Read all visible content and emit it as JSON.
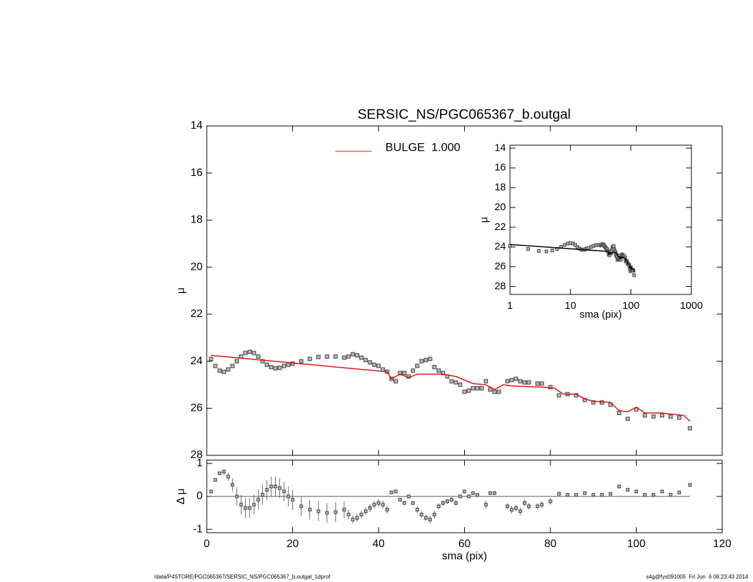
{
  "chart_data": [
    {
      "type": "scatter",
      "title": "SERSIC_NS/PGC065367_b.outgal",
      "ylabel": "μ",
      "xlim": [
        0,
        120
      ],
      "xticks": [
        0,
        20,
        40,
        60,
        80,
        100,
        120
      ],
      "ylim": [
        28,
        14
      ],
      "yticks": [
        14,
        16,
        18,
        20,
        22,
        24,
        26,
        28
      ],
      "legend": "top",
      "series": [
        {
          "color": "#555555",
          "x": [
            1,
            2,
            3,
            4,
            5,
            6,
            7,
            8,
            9,
            10,
            11,
            12,
            13,
            14,
            15,
            16,
            17,
            18,
            19,
            20,
            22,
            24,
            26,
            28,
            30,
            32,
            33,
            34,
            35,
            36,
            37,
            38,
            39,
            40,
            41,
            42,
            43,
            44,
            45,
            46,
            47,
            48,
            49,
            50,
            51,
            52,
            53,
            54,
            55,
            56,
            57,
            58,
            59,
            60,
            61,
            62,
            63,
            64,
            65,
            66,
            67,
            68,
            70,
            71,
            72,
            73,
            74,
            75,
            77,
            78,
            80,
            82,
            84,
            86,
            88,
            90,
            92,
            94,
            96,
            98,
            100,
            102,
            104,
            106,
            108,
            110,
            112.5
          ],
          "values": [
            23.9,
            24.2,
            24.4,
            24.45,
            24.35,
            24.2,
            24.0,
            23.8,
            23.65,
            23.6,
            23.65,
            23.8,
            24.0,
            24.15,
            24.25,
            24.3,
            24.28,
            24.2,
            24.15,
            24.1,
            24.0,
            23.9,
            23.82,
            23.8,
            23.8,
            23.85,
            23.8,
            23.7,
            23.75,
            23.85,
            23.95,
            24.05,
            24.15,
            24.2,
            24.35,
            24.45,
            24.75,
            24.85,
            24.5,
            24.5,
            24.65,
            24.4,
            24.2,
            24.0,
            23.95,
            23.9,
            24.25,
            24.4,
            24.5,
            24.65,
            24.85,
            24.9,
            25.0,
            25.3,
            25.25,
            25.15,
            25.15,
            25.15,
            24.85,
            25.2,
            25.3,
            25.3,
            24.85,
            24.8,
            24.75,
            24.85,
            24.9,
            24.9,
            24.95,
            24.95,
            25.1,
            25.45,
            25.4,
            25.45,
            25.65,
            25.75,
            25.75,
            25.85,
            26.2,
            26.45,
            26.05,
            26.3,
            26.35,
            26.3,
            26.35,
            26.4,
            26.85
          ]
        },
        {
          "name": "BULGE  1.000",
          "color": "#dd1111",
          "x": [
            1,
            42,
            43,
            45,
            47,
            49,
            55,
            58,
            62,
            65,
            67,
            69,
            71,
            78,
            81,
            83,
            86,
            88,
            90,
            94,
            96,
            98,
            100,
            102,
            106,
            108,
            111,
            112.5
          ],
          "values": [
            23.75,
            24.45,
            24.75,
            24.55,
            24.7,
            24.55,
            24.55,
            24.65,
            24.95,
            25.0,
            25.2,
            25.0,
            25.05,
            25.1,
            25.15,
            25.4,
            25.4,
            25.6,
            25.7,
            25.75,
            26.1,
            26.15,
            25.95,
            26.2,
            26.2,
            26.25,
            26.3,
            26.55
          ]
        }
      ]
    },
    {
      "type": "errorbar",
      "ylabel": "Δ μ",
      "xlabel": "sma (pix)",
      "xlim": [
        0,
        120
      ],
      "xticks": [
        0,
        20,
        40,
        60,
        80,
        100,
        120
      ],
      "ylim": [
        -1.1,
        1.1
      ],
      "yticks": [
        -1,
        0,
        1
      ],
      "zero_line": true,
      "color": "#555555",
      "x": [
        1,
        2,
        3,
        4,
        5,
        6,
        7,
        8,
        9,
        10,
        11,
        12,
        13,
        14,
        15,
        16,
        17,
        18,
        19,
        20,
        22,
        24,
        26,
        28,
        30,
        32,
        33,
        34,
        35,
        36,
        37,
        38,
        39,
        40,
        41,
        42,
        43,
        44,
        45,
        46,
        47,
        48,
        49,
        50,
        51,
        52,
        53,
        54,
        55,
        56,
        57,
        58,
        59,
        60,
        61,
        62,
        63,
        65,
        66,
        67,
        70,
        71,
        72,
        73,
        74,
        75,
        77,
        78,
        80,
        82,
        84,
        86,
        88,
        90,
        92,
        94,
        96,
        98,
        100,
        102,
        104,
        106,
        108,
        110,
        112.5
      ],
      "values": [
        0.15,
        0.5,
        0.7,
        0.75,
        0.6,
        0.35,
        0.0,
        -0.25,
        -0.35,
        -0.35,
        -0.25,
        -0.1,
        0.05,
        0.2,
        0.3,
        0.3,
        0.25,
        0.15,
        0.0,
        -0.1,
        -0.3,
        -0.4,
        -0.45,
        -0.5,
        -0.48,
        -0.4,
        -0.55,
        -0.7,
        -0.65,
        -0.55,
        -0.45,
        -0.35,
        -0.25,
        -0.2,
        -0.25,
        -0.4,
        0.12,
        0.15,
        -0.1,
        -0.2,
        0.0,
        -0.2,
        -0.4,
        -0.55,
        -0.65,
        -0.7,
        -0.55,
        -0.3,
        -0.2,
        -0.15,
        -0.1,
        -0.2,
        0.0,
        0.15,
        0.0,
        0.1,
        0.05,
        -0.25,
        0.1,
        0.1,
        -0.3,
        -0.4,
        -0.35,
        -0.45,
        -0.2,
        -0.3,
        -0.3,
        -0.25,
        -0.15,
        0.08,
        0.05,
        0.05,
        0.1,
        0.05,
        0.05,
        0.08,
        0.3,
        0.2,
        0.15,
        0.05,
        0.05,
        0.15,
        0.05,
        0.12,
        0.35
      ],
      "errors": [
        0.05,
        0.05,
        0.06,
        0.08,
        0.12,
        0.2,
        0.28,
        0.3,
        0.3,
        0.3,
        0.3,
        0.3,
        0.3,
        0.3,
        0.3,
        0.3,
        0.3,
        0.3,
        0.3,
        0.3,
        0.3,
        0.3,
        0.3,
        0.3,
        0.3,
        0.25,
        0.15,
        0.12,
        0.12,
        0.12,
        0.12,
        0.12,
        0.12,
        0.12,
        0.12,
        0.12,
        0.06,
        0.06,
        0.06,
        0.06,
        0.06,
        0.06,
        0.1,
        0.1,
        0.1,
        0.12,
        0.12,
        0.1,
        0.08,
        0.08,
        0.08,
        0.08,
        0.06,
        0.05,
        0.05,
        0.05,
        0.05,
        0.12,
        0.05,
        0.05,
        0.1,
        0.12,
        0.1,
        0.12,
        0.1,
        0.1,
        0.1,
        0.1,
        0.1,
        0.04,
        0.04,
        0.04,
        0.04,
        0.04,
        0.04,
        0.04,
        0.05,
        0.05,
        0.05,
        0.04,
        0.04,
        0.04,
        0.04,
        0.04,
        0.04
      ]
    },
    {
      "type": "inset",
      "xlabel": "sma (pix)",
      "ylabel": "μ",
      "xlog": true,
      "xlim": [
        1,
        1000
      ],
      "xticks": [
        1,
        10,
        100,
        1000
      ],
      "ylim": [
        28.8,
        13.7
      ],
      "yticks": [
        14,
        16,
        18,
        20,
        22,
        24,
        26,
        28
      ],
      "model_color": "#000000"
    }
  ],
  "footer": {
    "left": "/data/P4STORE/PGC065367/SERSIC_NS/PGC065367_b.outgal_1dprof",
    "right": "s4g@fys091005  Fri Jun  6 06:23:43 2014"
  }
}
